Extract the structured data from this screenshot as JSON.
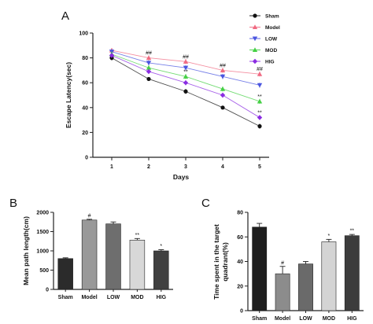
{
  "chart_data": [
    {
      "panel": "A",
      "type": "line",
      "xlabel": "Days",
      "ylabel": "Escape Latency(sec)",
      "x": [
        1,
        2,
        3,
        4,
        5
      ],
      "xticks": [
        "1",
        "2",
        "3",
        "4",
        "5"
      ],
      "yticks": [
        "0",
        "20",
        "40",
        "60",
        "80",
        "100"
      ],
      "ylim": [
        0,
        100
      ],
      "legend": "top-right",
      "grid": false,
      "series": [
        {
          "name": "Sham",
          "values": [
            80,
            63,
            53,
            40,
            25
          ],
          "err": [
            2,
            1.5,
            2,
            1,
            2
          ],
          "color": "#111111",
          "marker": "circle"
        },
        {
          "name": "Model",
          "values": [
            86,
            80,
            77,
            70,
            67
          ],
          "err": [
            2,
            2,
            2,
            2,
            2
          ],
          "color": "#f06a82",
          "marker": "triangle-up"
        },
        {
          "name": "LOW",
          "values": [
            85,
            76,
            72,
            65,
            58
          ],
          "err": [
            2,
            2,
            2,
            2,
            2
          ],
          "color": "#4a55e0",
          "marker": "triangle-down"
        },
        {
          "name": "MOD",
          "values": [
            83,
            72,
            65,
            55,
            45
          ],
          "err": [
            2,
            2,
            2,
            2,
            2
          ],
          "color": "#45d045",
          "marker": "triangle-up"
        },
        {
          "name": "HIG",
          "values": [
            82,
            69,
            60,
            50,
            32
          ],
          "err": [
            2,
            2,
            2,
            2,
            2
          ],
          "color": "#8a2be2",
          "marker": "diamond"
        }
      ],
      "annotations": [
        {
          "x": 2,
          "y": 80,
          "text": "##"
        },
        {
          "x": 3,
          "y": 77,
          "text": "##"
        },
        {
          "x": 4,
          "y": 70,
          "text": "##"
        },
        {
          "x": 5,
          "y": 67,
          "text": "##"
        },
        {
          "x": 3,
          "y": 65,
          "text": "**"
        },
        {
          "x": 5,
          "y": 45,
          "text": "**"
        },
        {
          "x": 5,
          "y": 32,
          "text": "**"
        }
      ]
    },
    {
      "panel": "B",
      "type": "bar",
      "categories": [
        "Sham",
        "Model",
        "LOW",
        "MOD",
        "HIG"
      ],
      "values": [
        800,
        1800,
        1700,
        1280,
        1000
      ],
      "err": [
        20,
        20,
        50,
        40,
        30
      ],
      "colors": [
        "#2b2b2b",
        "#999999",
        "#6e6e6e",
        "#d8d8d8",
        "#404040"
      ],
      "labels": [
        "",
        "#",
        "",
        "**",
        "*"
      ],
      "ylabel": "Mean path length(cm)",
      "yticks": [
        "0",
        "500",
        "1000",
        "1500",
        "2000"
      ],
      "ylim": [
        0,
        2000
      ]
    },
    {
      "panel": "C",
      "type": "bar",
      "categories": [
        "Sham",
        "Model",
        "LOW",
        "MOD",
        "HIG"
      ],
      "values": [
        68,
        30,
        38,
        56,
        61
      ],
      "err": [
        3,
        6,
        2,
        2,
        1
      ],
      "colors": [
        "#1e1e1e",
        "#8c8c8c",
        "#6a6a6a",
        "#d4d4d4",
        "#3c3c3c"
      ],
      "labels": [
        "",
        "#",
        "",
        "*",
        "**"
      ],
      "ylabel": "Time spent in the target quadrant(%)",
      "ylabel_lines": [
        "Time spent in the target",
        "quadrant(%)"
      ],
      "yticks": [
        "0",
        "20",
        "40",
        "60",
        "80"
      ],
      "ylim": [
        0,
        80
      ]
    }
  ]
}
